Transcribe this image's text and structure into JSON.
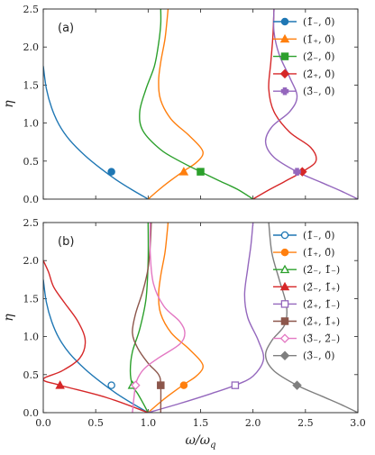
{
  "chart_data": [
    {
      "type": "line",
      "panel_label": "(a)",
      "xlim": [
        0,
        3
      ],
      "ylim": [
        0,
        2.5
      ],
      "xticks": [
        "",
        "",
        "",
        "",
        "",
        "",
        ""
      ],
      "yticks": [
        "0.0",
        "0.5",
        "1.0",
        "1.5",
        "2.0",
        "2.5"
      ],
      "xlabel": "",
      "ylabel": "η",
      "grid": false,
      "legend": "top-right",
      "series": [
        {
          "name": "(1̃₋, 0̃)",
          "color": "#1f77b4",
          "marker": "circle",
          "filled": true,
          "marker_point": [
            0.65,
            0.36
          ],
          "x": [
            0.0,
            0.03,
            0.08,
            0.15,
            0.25,
            0.4,
            0.55,
            0.7,
            0.85,
            1.0
          ],
          "y": [
            1.75,
            1.45,
            1.2,
            0.98,
            0.78,
            0.57,
            0.4,
            0.25,
            0.12,
            0.0
          ]
        },
        {
          "name": "(1̃₊, 0̃)",
          "color": "#ff7f0e",
          "marker": "triangle",
          "filled": true,
          "marker_point": [
            1.34,
            0.36
          ],
          "x": [
            1.0,
            1.1,
            1.2,
            1.34,
            1.45,
            1.52,
            1.5,
            1.38,
            1.22,
            1.12,
            1.1,
            1.12,
            1.16,
            1.18,
            1.19
          ],
          "y": [
            0.0,
            0.12,
            0.23,
            0.37,
            0.47,
            0.58,
            0.68,
            0.85,
            1.05,
            1.3,
            1.55,
            1.8,
            2.1,
            2.35,
            2.5
          ]
        },
        {
          "name": "(2̃₋, 0̃)",
          "color": "#2ca02c",
          "marker": "square",
          "filled": true,
          "marker_point": [
            1.5,
            0.36
          ],
          "x": [
            2.0,
            1.85,
            1.68,
            1.5,
            1.3,
            1.12,
            0.95,
            0.92,
            0.98,
            1.06,
            1.1,
            1.12,
            1.12
          ],
          "y": [
            0.0,
            0.13,
            0.24,
            0.36,
            0.5,
            0.65,
            0.9,
            1.15,
            1.45,
            1.75,
            2.05,
            2.3,
            2.5
          ]
        },
        {
          "name": "(2̃₊, 0̃)",
          "color": "#d62728",
          "marker": "diamond",
          "filled": true,
          "marker_point": [
            2.47,
            0.36
          ],
          "x": [
            2.0,
            2.15,
            2.3,
            2.47,
            2.6,
            2.55,
            2.35,
            2.2,
            2.15,
            2.17,
            2.19,
            2.2
          ],
          "y": [
            0.0,
            0.12,
            0.23,
            0.36,
            0.5,
            0.68,
            0.88,
            1.15,
            1.45,
            1.8,
            2.15,
            2.5
          ]
        },
        {
          "name": "(3̃₋, 0̃)",
          "color": "#9467bd",
          "marker": "plus",
          "filled": true,
          "marker_point": [
            2.42,
            0.36
          ],
          "x": [
            3.0,
            2.85,
            2.65,
            2.42,
            2.2,
            2.12,
            2.18,
            2.35,
            2.42,
            2.35,
            2.25,
            2.2,
            2.2
          ],
          "y": [
            0.0,
            0.1,
            0.22,
            0.36,
            0.55,
            0.75,
            0.95,
            1.15,
            1.35,
            1.6,
            1.9,
            2.2,
            2.5
          ]
        }
      ]
    },
    {
      "type": "line",
      "panel_label": "(b)",
      "xlim": [
        0,
        3
      ],
      "ylim": [
        0,
        2.5
      ],
      "xticks": [
        "0.0",
        "0.5",
        "1.0",
        "1.5",
        "2.0",
        "2.5",
        "3.0"
      ],
      "yticks": [
        "0.0",
        "0.5",
        "1.0",
        "1.5",
        "2.0",
        "2.5"
      ],
      "xlabel": "ω/ω",
      "xlabel_sub": "q",
      "ylabel": "η",
      "grid": false,
      "legend": "top-right",
      "series": [
        {
          "name": "(1̃₋, 0̃)",
          "color": "#1f77b4",
          "marker": "circle",
          "filled": false,
          "marker_point": [
            0.65,
            0.36
          ],
          "x": [
            0.0,
            0.03,
            0.08,
            0.15,
            0.25,
            0.4,
            0.55,
            0.7,
            0.85,
            1.0
          ],
          "y": [
            1.75,
            1.45,
            1.2,
            0.98,
            0.78,
            0.57,
            0.4,
            0.25,
            0.12,
            0.0
          ]
        },
        {
          "name": "(1̃₊, 0̃)",
          "color": "#ff7f0e",
          "marker": "circle",
          "filled": true,
          "marker_point": [
            1.34,
            0.36
          ],
          "x": [
            1.0,
            1.1,
            1.2,
            1.34,
            1.45,
            1.52,
            1.5,
            1.38,
            1.22,
            1.12,
            1.1,
            1.12,
            1.16,
            1.18,
            1.19
          ],
          "y": [
            0.0,
            0.12,
            0.23,
            0.37,
            0.47,
            0.58,
            0.68,
            0.85,
            1.05,
            1.3,
            1.55,
            1.8,
            2.1,
            2.35,
            2.5
          ]
        },
        {
          "name": "(2̃₋, 1̃₋)",
          "color": "#2ca02c",
          "marker": "triangle",
          "filled": false,
          "marker_point": [
            0.85,
            0.36
          ],
          "x": [
            1.0,
            0.95,
            0.9,
            0.85,
            0.83,
            0.85,
            0.92,
            0.98,
            1.0,
            1.0
          ],
          "y": [
            0.0,
            0.13,
            0.25,
            0.36,
            0.55,
            0.8,
            1.1,
            1.5,
            2.0,
            2.5
          ]
        },
        {
          "name": "(2̃₋, 1̃₊)",
          "color": "#d62728",
          "marker": "triangle",
          "filled": true,
          "marker_point": [
            0.16,
            0.36
          ],
          "x": [
            1.0,
            0.6,
            0.16,
            0.0,
            0.18,
            0.35,
            0.4,
            0.33,
            0.2,
            0.1,
            0.05,
            0.0
          ],
          "y": [
            0.0,
            0.2,
            0.36,
            0.44,
            0.55,
            0.72,
            0.95,
            1.2,
            1.45,
            1.65,
            1.85,
            2.0
          ]
        },
        {
          "name": "(2̃₊, 1̃₋)",
          "color": "#9467bd",
          "marker": "square",
          "filled": false,
          "marker_point": [
            1.83,
            0.36
          ],
          "x": [
            1.0,
            1.3,
            1.6,
            1.83,
            2.0,
            2.1,
            2.05,
            1.95,
            1.92,
            1.95,
            1.98,
            2.0
          ],
          "y": [
            0.0,
            0.12,
            0.25,
            0.36,
            0.48,
            0.7,
            0.95,
            1.25,
            1.55,
            1.9,
            2.2,
            2.5
          ]
        },
        {
          "name": "(2̃₊, 1̃₊)",
          "color": "#8c564b",
          "marker": "square",
          "filled": true,
          "marker_point": [
            1.12,
            0.36
          ],
          "x": [
            1.12,
            1.12,
            1.1,
            1.0,
            0.9,
            0.85,
            0.88,
            0.95,
            1.0,
            1.02,
            1.03
          ],
          "y": [
            0.0,
            0.36,
            0.5,
            0.65,
            0.85,
            1.05,
            1.3,
            1.6,
            1.9,
            2.2,
            2.5
          ]
        },
        {
          "name": "(3̃₋, 2̃₋)",
          "color": "#e377c2",
          "marker": "diamond",
          "filled": false,
          "marker_point": [
            0.88,
            0.36
          ],
          "x": [
            0.85,
            0.88,
            0.92,
            0.98,
            1.1,
            1.3,
            1.35,
            1.3,
            1.15,
            1.05,
            1.02,
            1.02
          ],
          "y": [
            0.0,
            0.36,
            0.5,
            0.6,
            0.72,
            0.9,
            1.05,
            1.2,
            1.4,
            1.7,
            2.1,
            2.5
          ]
        },
        {
          "name": "(3̃₋, 0̃)",
          "color": "#7f7f7f",
          "marker": "diamond",
          "filled": true,
          "marker_point": [
            2.42,
            0.36
          ],
          "x": [
            3.0,
            2.85,
            2.65,
            2.42,
            2.2,
            2.12,
            2.18,
            2.3,
            2.32,
            2.25,
            2.18,
            2.15
          ],
          "y": [
            0.0,
            0.1,
            0.22,
            0.36,
            0.55,
            0.75,
            0.95,
            1.15,
            1.4,
            1.75,
            2.1,
            2.5
          ]
        }
      ]
    }
  ]
}
